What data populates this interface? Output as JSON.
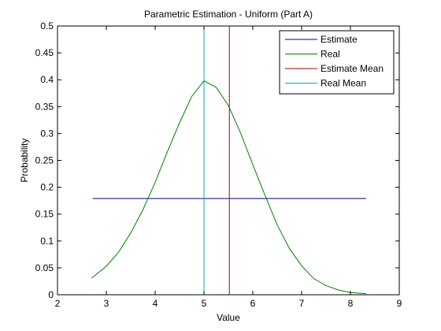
{
  "chart_data": {
    "type": "line",
    "title": "Parametric Estimation - Uniform (Part A)",
    "xlabel": "Value",
    "ylabel": "Probability",
    "xlim": [
      2,
      9
    ],
    "ylim": [
      0,
      0.5
    ],
    "xticks": [
      2,
      3,
      4,
      5,
      6,
      7,
      8,
      9
    ],
    "yticks": [
      0,
      0.05,
      0.1,
      0.15,
      0.2,
      0.25,
      0.3,
      0.35,
      0.4,
      0.45,
      0.5
    ],
    "grid": false,
    "legend_position": "top-right",
    "series": [
      {
        "name": "Estimate",
        "kind": "line",
        "color": "#000080",
        "x": [
          2.72,
          8.32
        ],
        "y": [
          0.179,
          0.179
        ]
      },
      {
        "name": "Real",
        "kind": "line",
        "color": "#008000",
        "x": [
          2.7,
          3.0,
          3.25,
          3.5,
          3.75,
          4.0,
          4.25,
          4.5,
          4.75,
          5.0,
          5.25,
          5.5,
          5.75,
          6.0,
          6.25,
          6.5,
          6.75,
          7.0,
          7.25,
          7.5,
          7.75,
          8.0,
          8.32
        ],
        "y": [
          0.031,
          0.053,
          0.079,
          0.115,
          0.158,
          0.209,
          0.266,
          0.32,
          0.369,
          0.398,
          0.386,
          0.352,
          0.301,
          0.242,
          0.185,
          0.13,
          0.086,
          0.054,
          0.03,
          0.017,
          0.009,
          0.004,
          0.002
        ]
      },
      {
        "name": "Estimate Mean",
        "kind": "vline",
        "color": "#aa0000",
        "x": [
          5.52,
          5.52
        ],
        "y": [
          0,
          0.5
        ]
      },
      {
        "name": "Real Mean",
        "kind": "vline",
        "color": "#00b0b0",
        "x": [
          5.0,
          5.0
        ],
        "y": [
          0,
          0.5
        ]
      }
    ]
  }
}
